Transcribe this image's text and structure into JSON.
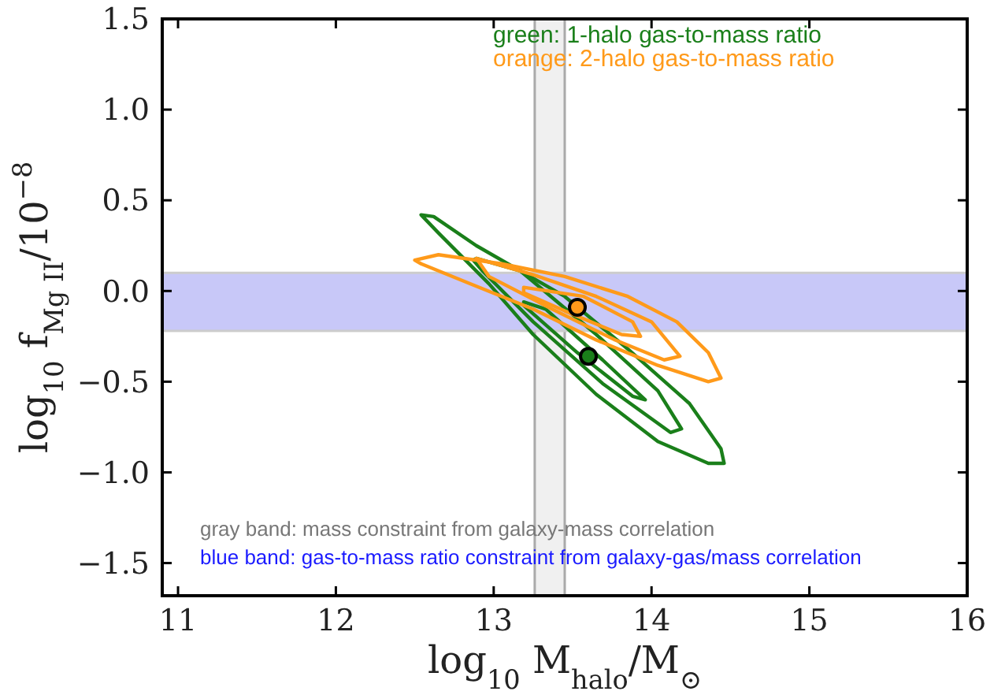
{
  "chart_data": {
    "type": "scatter",
    "xlabel": "log$_{10}$ M$_{halo}$/M$_{⊙}$",
    "ylabel": "log$_{10}$ f$_{Mg II}$/10$^{−8}$",
    "xlim": [
      10.9,
      16
    ],
    "ylim": [
      -1.68,
      1.5
    ],
    "xticks": [
      11,
      12,
      13,
      14,
      15,
      16
    ],
    "yticks": [
      {
        "value": -1.5,
        "label": "−1.5"
      },
      {
        "value": -1,
        "label": "−1.0"
      },
      {
        "value": -0.5,
        "label": "−0.5"
      },
      {
        "value": 0,
        "label": "0.0"
      },
      {
        "value": 0.5,
        "label": "0.5"
      },
      {
        "value": 1,
        "label": "1.0"
      },
      {
        "value": 1.5,
        "label": "1.5"
      }
    ],
    "grid": false,
    "marker": "circle",
    "bands": [
      {
        "axis": "x",
        "from": 13.26,
        "to": 13.45,
        "color": "#f0f0f0"
      },
      {
        "axis": "y",
        "from": -0.22,
        "to": 0.1,
        "color": "#c8c8f8"
      }
    ],
    "series": [
      {
        "color": "#ff9a1a",
        "x": [
          13.53
        ],
        "values": [
          -0.09
        ]
      },
      {
        "color": "#1a7f1a",
        "x": [
          13.6
        ],
        "values": [
          -0.36
        ]
      }
    ],
    "annotations": [
      "green: 1-halo gas-to-mass ratio",
      "orange: 2-halo gas-to-mass ratio",
      "gray band: mass constraint from galaxy-mass correlation",
      "blue band: gas-to-mass ratio constraint from galaxy-gas/mass correlation"
    ]
  }
}
